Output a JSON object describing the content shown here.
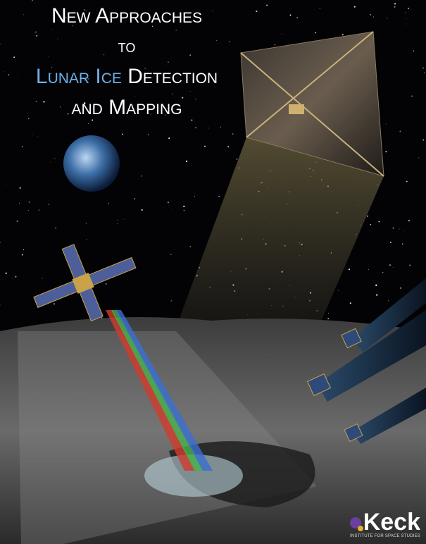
{
  "title": {
    "line1": "New Approaches",
    "line2": "to",
    "line3a": "Lunar Ice",
    "line3b": "Detection",
    "line4": "and Mapping"
  },
  "logo": {
    "name": "Keck",
    "subtitle": "INSTITUTE FOR SPACE STUDIES"
  }
}
